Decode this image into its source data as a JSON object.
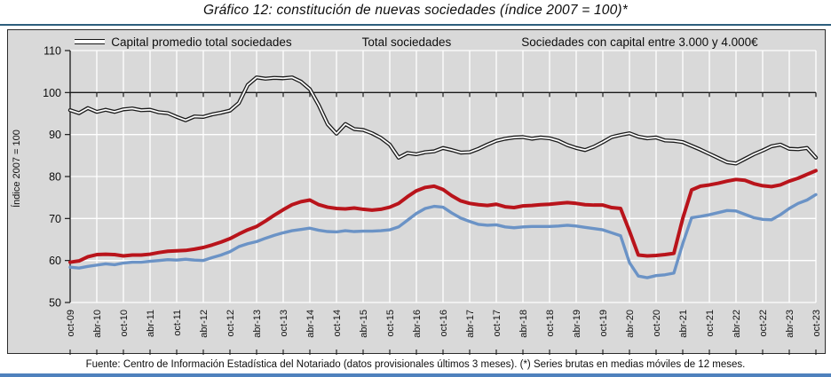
{
  "title": "Gráfico 12: constitución de nuevas sociedades (índice 2007 = 100)*",
  "footer": "Fuente: Centro de Información Estadística del Notariado (datos provisionales últimos 3 meses). (*) Series brutas en medias móviles de 12 meses.",
  "colors": {
    "plot_background": "#d9d9d9",
    "gridline": "#ffffff",
    "baseline_100": "#1a1a1a",
    "series_black": "#1a1a1a",
    "series_blue": "#6b93c6",
    "series_red": "#b9141b",
    "title_rule": "#2d5f7d",
    "bottom_bar": "#4f81bd"
  },
  "chart_data": {
    "type": "line",
    "title": "Gráfico 12: constitución de nuevas sociedades (índice 2007 = 100)*",
    "ylabel": "Índice 2007 = 100",
    "ylim": [
      50,
      110
    ],
    "yticks": [
      50,
      60,
      70,
      80,
      90,
      100,
      110
    ],
    "baseline": 100,
    "grid": "vertical white gridlines at each half-year tick, horizontal white gridlines each 10, black line at 100",
    "legend_position": "top",
    "x_note": "monthly index series Oct-2009 to Oct-2023, sampled here every 2 months (85 points); axis ticks every 6 months",
    "x_tick_labels": [
      "oct-09",
      "abr-10",
      "oct-10",
      "abr-11",
      "oct-11",
      "abr-12",
      "oct-12",
      "abr-13",
      "oct-13",
      "abr-14",
      "oct-14",
      "abr-15",
      "oct-15",
      "abr-16",
      "oct-16",
      "abr-17",
      "oct-17",
      "abr-18",
      "oct-18",
      "abr-19",
      "oct-19",
      "abr-20",
      "oct-20",
      "abr-21",
      "oct-21",
      "abr-22",
      "oct-22",
      "abr-23",
      "oct-23"
    ],
    "series": [
      {
        "name": "Capital promedio total sociedades",
        "color": "#1a1a1a",
        "style": "double-line",
        "values": [
          95.8,
          95.1,
          96.3,
          95.4,
          95.9,
          95.4,
          96.0,
          96.2,
          95.8,
          95.9,
          95.3,
          95.1,
          94.2,
          93.4,
          94.3,
          94.2,
          94.8,
          95.2,
          95.7,
          97.5,
          101.8,
          103.6,
          103.3,
          103.5,
          103.4,
          103.6,
          102.6,
          100.8,
          97.0,
          92.5,
          90.2,
          92.5,
          91.3,
          91.1,
          90.3,
          89.2,
          87.6,
          84.5,
          85.6,
          85.3,
          85.8,
          86.0,
          86.8,
          86.3,
          85.7,
          85.8,
          86.6,
          87.6,
          88.5,
          89.0,
          89.3,
          89.4,
          89.0,
          89.3,
          89.1,
          88.5,
          87.5,
          86.8,
          86.3,
          87.1,
          88.2,
          89.4,
          89.9,
          90.3,
          89.5,
          89.1,
          89.3,
          88.6,
          88.5,
          88.2,
          87.3,
          86.4,
          85.4,
          84.4,
          83.4,
          83.1,
          84.2,
          85.3,
          86.2,
          87.2,
          87.6,
          86.6,
          86.5,
          86.8,
          84.5
        ]
      },
      {
        "name": "Total sociedades",
        "color": "#6b93c6",
        "style": "solid",
        "values": [
          58.4,
          58.2,
          58.6,
          58.9,
          59.2,
          59.0,
          59.4,
          59.6,
          59.6,
          59.8,
          60.0,
          60.2,
          60.1,
          60.3,
          60.1,
          60.0,
          60.7,
          61.3,
          62.1,
          63.3,
          64.0,
          64.5,
          65.3,
          66.0,
          66.6,
          67.1,
          67.4,
          67.7,
          67.2,
          66.9,
          66.8,
          67.1,
          66.9,
          67.0,
          67.0,
          67.1,
          67.3,
          68.0,
          69.6,
          71.2,
          72.4,
          72.9,
          72.7,
          71.3,
          70.1,
          69.3,
          68.6,
          68.4,
          68.5,
          68.0,
          67.8,
          68.0,
          68.1,
          68.1,
          68.1,
          68.2,
          68.4,
          68.2,
          67.9,
          67.6,
          67.3,
          66.6,
          65.9,
          59.5,
          56.3,
          55.9,
          56.4,
          56.6,
          57.0,
          64.0,
          70.2,
          70.5,
          70.9,
          71.4,
          71.9,
          71.8,
          71.0,
          70.2,
          69.8,
          69.7,
          70.9,
          72.4,
          73.6,
          74.4,
          75.7
        ]
      },
      {
        "name": "Sociedades con capital entre 3.000 y 4.000€",
        "color": "#b9141b",
        "style": "solid",
        "values": [
          59.6,
          59.9,
          60.9,
          61.4,
          61.5,
          61.4,
          61.1,
          61.3,
          61.3,
          61.5,
          61.9,
          62.2,
          62.3,
          62.4,
          62.7,
          63.1,
          63.7,
          64.4,
          65.2,
          66.3,
          67.3,
          68.1,
          69.4,
          70.8,
          72.1,
          73.3,
          74.0,
          74.4,
          73.3,
          72.7,
          72.4,
          72.3,
          72.5,
          72.2,
          72.0,
          72.2,
          72.7,
          73.6,
          75.2,
          76.6,
          77.4,
          77.7,
          76.9,
          75.4,
          74.2,
          73.6,
          73.3,
          73.1,
          73.4,
          72.8,
          72.6,
          73.0,
          73.1,
          73.3,
          73.4,
          73.6,
          73.8,
          73.6,
          73.3,
          73.2,
          73.2,
          72.6,
          72.4,
          67.0,
          61.3,
          61.1,
          61.2,
          61.4,
          61.7,
          70.0,
          76.8,
          77.7,
          78.0,
          78.4,
          78.9,
          79.3,
          79.1,
          78.3,
          77.8,
          77.6,
          78.0,
          78.9,
          79.6,
          80.5,
          81.4
        ]
      }
    ]
  }
}
